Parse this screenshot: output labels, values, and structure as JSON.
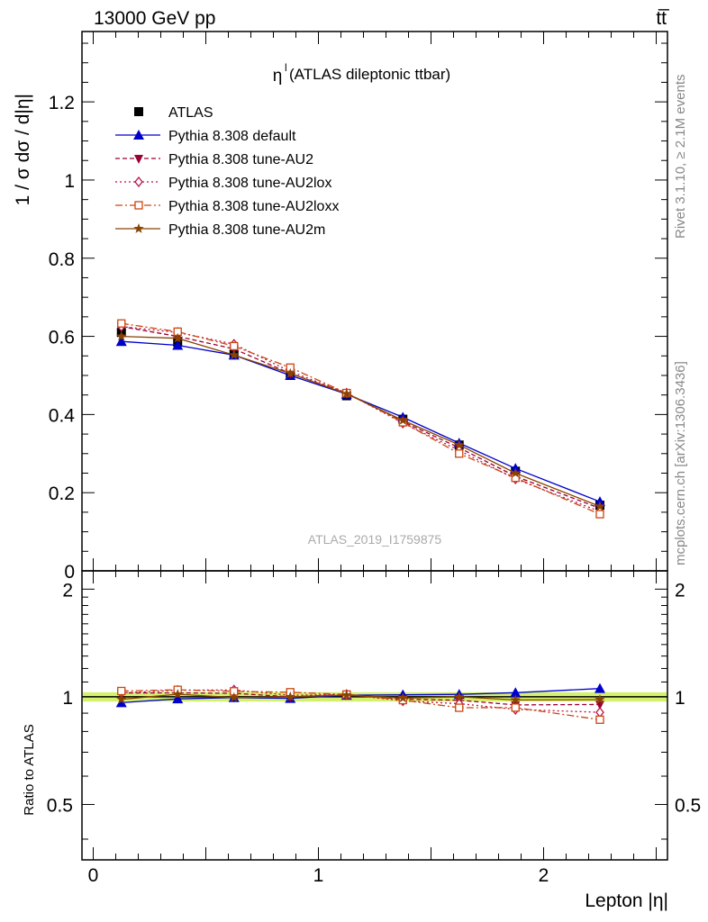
{
  "header": {
    "energy_label": "13000 GeV pp",
    "process_label": "tt̅"
  },
  "side_labels": {
    "rivet": "Rivet 3.1.10, ≥ 2.1M events",
    "mcplots": "mcplots.cern.ch [arXiv:1306.3436]"
  },
  "watermark": "ATLAS_2019_I1759875",
  "chart_data": [
    {
      "type": "line",
      "title": "ηˡ (ATLAS dileptonic ttbar)",
      "title_main": "η",
      "title_sup": "l",
      "title_rest": " (ATLAS dileptonic ttbar)",
      "ylabel": "1 / σ  dσ / d|η|",
      "xlim": [
        -0.05,
        2.55
      ],
      "ylim": [
        0,
        1.38
      ],
      "y_ticks": [
        0,
        0.2,
        0.4,
        0.6,
        0.8,
        1,
        1.2
      ],
      "y_tick_labels": [
        "0",
        "0.2",
        "0.4",
        "0.6",
        "0.8",
        "1",
        "1.2"
      ],
      "legend_position": "top-left",
      "x": [
        0.125,
        0.375,
        0.625,
        0.875,
        1.125,
        1.375,
        1.625,
        1.875,
        2.25
      ],
      "series": [
        {
          "name": "ATLAS",
          "color": "#000000",
          "marker": "square",
          "dash": "",
          "values": [
            0.61,
            0.585,
            0.555,
            0.505,
            0.448,
            0.388,
            0.322,
            0.255,
            0.168
          ]
        },
        {
          "name": "Pythia 8.308 default",
          "color": "#0000cc",
          "marker": "triangle-up",
          "dash": "",
          "values": [
            0.587,
            0.577,
            0.552,
            0.5,
            0.452,
            0.393,
            0.327,
            0.262,
            0.177
          ]
        },
        {
          "name": "Pythia 8.308 tune-AU2",
          "color": "#990033",
          "marker": "triangle-down",
          "dash": "5,3",
          "values": [
            0.625,
            0.6,
            0.568,
            0.505,
            0.455,
            0.382,
            0.315,
            0.242,
            0.16
          ]
        },
        {
          "name": "Pythia 8.308 tune-AU2lox",
          "color": "#bb1144",
          "marker": "diamond",
          "dash": "2,3",
          "values": [
            0.625,
            0.61,
            0.58,
            0.51,
            0.455,
            0.378,
            0.308,
            0.235,
            0.152
          ]
        },
        {
          "name": "Pythia 8.308 tune-AU2loxx",
          "color": "#cc4411",
          "marker": "square-open",
          "dash": "8,3,2,3",
          "values": [
            0.633,
            0.612,
            0.575,
            0.52,
            0.455,
            0.38,
            0.3,
            0.238,
            0.145
          ]
        },
        {
          "name": "Pythia 8.308 tune-AU2m",
          "color": "#884400",
          "marker": "star",
          "dash": "",
          "values": [
            0.6,
            0.595,
            0.552,
            0.505,
            0.453,
            0.385,
            0.322,
            0.25,
            0.165
          ]
        }
      ]
    },
    {
      "type": "line",
      "ylabel": "Ratio to ATLAS",
      "xlabel": "Lepton |η|",
      "xlim": [
        -0.05,
        2.55
      ],
      "ylim": [
        0.35,
        2.25
      ],
      "y_scale": "log",
      "y_ticks": [
        0.5,
        1,
        2
      ],
      "y_tick_labels": [
        "0.5",
        "1",
        "2"
      ],
      "x_ticks": [
        0,
        1,
        2
      ],
      "x_tick_labels": [
        "0",
        "1",
        "2"
      ],
      "band_color": "#ccee55",
      "x": [
        0.125,
        0.375,
        0.625,
        0.875,
        1.125,
        1.375,
        1.625,
        1.875,
        2.25
      ],
      "series": [
        {
          "name": "Pythia 8.308 default",
          "color": "#0000cc",
          "marker": "triangle-up",
          "dash": "",
          "values": [
            0.963,
            0.987,
            0.995,
            0.99,
            1.01,
            1.013,
            1.016,
            1.027,
            1.055
          ]
        },
        {
          "name": "Pythia 8.308 tune-AU2",
          "color": "#990033",
          "marker": "triangle-down",
          "dash": "5,3",
          "values": [
            1.025,
            1.026,
            1.023,
            1.0,
            1.015,
            0.985,
            0.978,
            0.949,
            0.952
          ]
        },
        {
          "name": "Pythia 8.308 tune-AU2lox",
          "color": "#bb1144",
          "marker": "diamond",
          "dash": "2,3",
          "values": [
            1.025,
            1.043,
            1.045,
            1.01,
            1.015,
            0.974,
            0.957,
            0.922,
            0.905
          ]
        },
        {
          "name": "Pythia 8.308 tune-AU2loxx",
          "color": "#cc4411",
          "marker": "square-open",
          "dash": "8,3,2,3",
          "values": [
            1.038,
            1.046,
            1.036,
            1.03,
            1.015,
            0.979,
            0.932,
            0.933,
            0.863
          ]
        },
        {
          "name": "Pythia 8.308 tune-AU2m",
          "color": "#884400",
          "marker": "star",
          "dash": "",
          "values": [
            0.984,
            1.017,
            0.995,
            1.0,
            1.011,
            0.992,
            1.0,
            0.98,
            0.982
          ]
        }
      ]
    }
  ]
}
